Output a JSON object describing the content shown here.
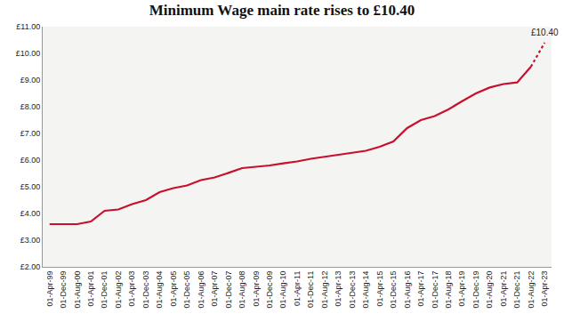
{
  "chart_data": {
    "type": "line",
    "title": "Minimum Wage main rate rises to £10.40",
    "categories": [
      "01-Apr-99",
      "01-Dec-99",
      "01-Aug-00",
      "01-Apr-01",
      "01-Dec-01",
      "01-Aug-02",
      "01-Apr-03",
      "01-Dec-03",
      "01-Aug-04",
      "01-Apr-05",
      "01-Dec-05",
      "01-Aug-06",
      "01-Apr-07",
      "01-Dec-07",
      "01-Aug-08",
      "01-Apr-09",
      "01-Dec-09",
      "01-Aug-10",
      "01-Apr-11",
      "01-Dec-11",
      "01-Aug-12",
      "01-Apr-13",
      "01-Dec-13",
      "01-Aug-14",
      "01-Apr-15",
      "01-Dec-15",
      "01-Aug-16",
      "01-Apr-17",
      "01-Dec-17",
      "01-Aug-18",
      "01-Apr-19",
      "01-Dec-19",
      "01-Aug-20",
      "01-Apr-21",
      "01-Dec-21",
      "01-Aug-22",
      "01-Apr-23"
    ],
    "series": [
      {
        "color": "#c8102e",
        "line_style": "solid",
        "values": [
          3.6,
          3.6,
          3.6,
          3.7,
          4.1,
          4.15,
          4.35,
          4.5,
          4.8,
          4.95,
          5.05,
          5.25,
          5.35,
          5.52,
          5.7,
          5.75,
          5.8,
          5.88,
          5.95,
          6.05,
          6.12,
          6.19,
          6.28,
          6.35,
          6.5,
          6.7,
          7.2,
          7.5,
          7.65,
          7.9,
          8.21,
          8.5,
          8.72,
          8.85,
          8.91,
          9.5,
          null
        ]
      },
      {
        "color": "#c8102e",
        "line_style": "dot",
        "values": [
          null,
          null,
          null,
          null,
          null,
          null,
          null,
          null,
          null,
          null,
          null,
          null,
          null,
          null,
          null,
          null,
          null,
          null,
          null,
          null,
          null,
          null,
          null,
          null,
          null,
          null,
          null,
          null,
          null,
          null,
          null,
          null,
          null,
          null,
          null,
          9.5,
          10.4
        ]
      }
    ],
    "annotations": [
      {
        "text": "£10.40",
        "category": "01-Apr-23",
        "value": 10.4
      }
    ],
    "ylim": [
      2,
      11
    ],
    "yticks": [
      {
        "value": 2,
        "label": "£2.00"
      },
      {
        "value": 3,
        "label": "£3.00"
      },
      {
        "value": 4,
        "label": "£4.00"
      },
      {
        "value": 5,
        "label": "£5.00"
      },
      {
        "value": 6,
        "label": "£6.00"
      },
      {
        "value": 7,
        "label": "£7.00"
      },
      {
        "value": 8,
        "label": "£8.00"
      },
      {
        "value": 9,
        "label": "£9.00"
      },
      {
        "value": 10,
        "label": "£10.00"
      },
      {
        "value": 11,
        "label": "£11.00"
      }
    ],
    "grid": false
  }
}
